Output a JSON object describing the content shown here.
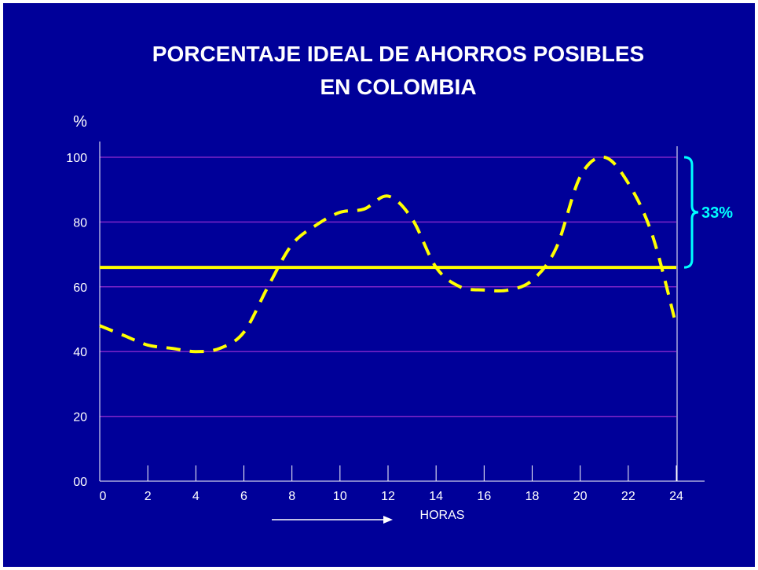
{
  "chart_data": {
    "type": "line",
    "title_lines": [
      "PORCENTAJE IDEAL DE AHORROS POSIBLES",
      "EN COLOMBIA"
    ],
    "ylabel": "%",
    "xlabel": "HORAS",
    "ylim": [
      0,
      100
    ],
    "xlim": [
      0,
      24
    ],
    "y_ticks": [
      "00",
      "20",
      "40",
      "60",
      "80",
      "100"
    ],
    "y_tick_values": [
      0,
      20,
      40,
      60,
      80,
      100
    ],
    "x_ticks": [
      "0",
      "2",
      "4",
      "6",
      "8",
      "10",
      "12",
      "14",
      "16",
      "18",
      "20",
      "22",
      "24"
    ],
    "x_tick_values": [
      0,
      2,
      4,
      6,
      8,
      10,
      12,
      14,
      16,
      18,
      20,
      22,
      24
    ],
    "grid": true,
    "series": [
      {
        "style": "dashed",
        "color": "#ffff00",
        "x": [
          0,
          1,
          2,
          3,
          4,
          5,
          6,
          7,
          8,
          9,
          10,
          11,
          12,
          13,
          14,
          15,
          16,
          17,
          18,
          19,
          20,
          21,
          22,
          23,
          24
        ],
        "y": [
          48,
          45,
          42,
          41,
          40,
          41,
          46,
          60,
          73,
          79,
          83,
          84,
          88,
          81,
          66,
          60,
          59,
          59,
          62,
          72,
          94,
          100,
          92,
          76,
          48
        ]
      }
    ],
    "reference_line": {
      "y": 66,
      "color": "#ffff00"
    },
    "annotation": {
      "text": "33%",
      "range": [
        66,
        100
      ],
      "color": "#00ffff"
    },
    "colors": {
      "background": "#000099",
      "grid": "#7b24c8",
      "axis": "#ffffff",
      "text": "#ffffff"
    }
  }
}
